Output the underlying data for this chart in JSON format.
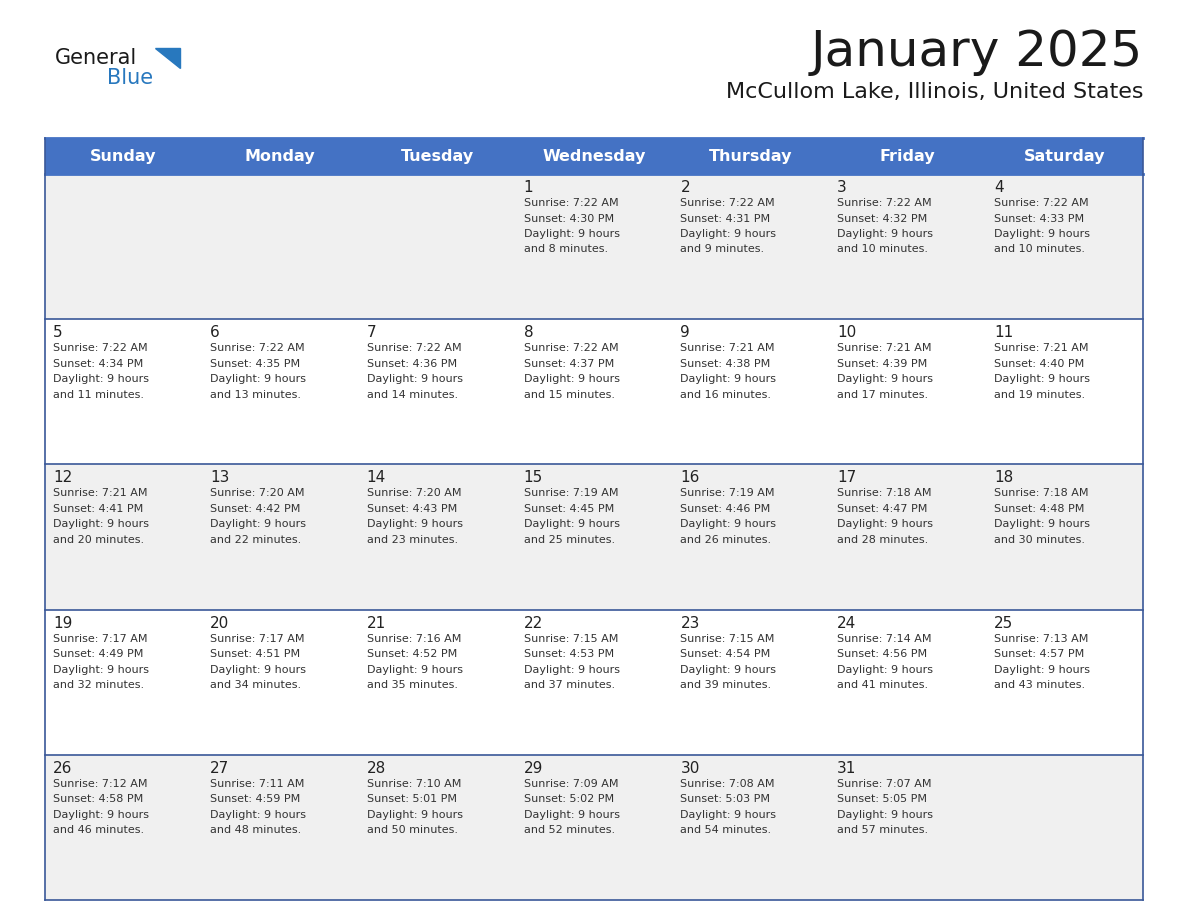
{
  "title": "January 2025",
  "subtitle": "McCullom Lake, Illinois, United States",
  "header_bg": "#4472C4",
  "header_text_color": "#FFFFFF",
  "cell_bg_light": "#F0F0F0",
  "cell_bg_white": "#FFFFFF",
  "header_border_color": "#4472C4",
  "row_border_color": "#3A5898",
  "text_color": "#333333",
  "day_num_color": "#222222",
  "day_names": [
    "Sunday",
    "Monday",
    "Tuesday",
    "Wednesday",
    "Thursday",
    "Friday",
    "Saturday"
  ],
  "days": [
    {
      "day": 1,
      "col": 3,
      "row": 0,
      "sunrise": "7:22 AM",
      "sunset": "4:30 PM",
      "daylight_h": "9 hours",
      "daylight_m": "and 8 minutes."
    },
    {
      "day": 2,
      "col": 4,
      "row": 0,
      "sunrise": "7:22 AM",
      "sunset": "4:31 PM",
      "daylight_h": "9 hours",
      "daylight_m": "and 9 minutes."
    },
    {
      "day": 3,
      "col": 5,
      "row": 0,
      "sunrise": "7:22 AM",
      "sunset": "4:32 PM",
      "daylight_h": "9 hours",
      "daylight_m": "and 10 minutes."
    },
    {
      "day": 4,
      "col": 6,
      "row": 0,
      "sunrise": "7:22 AM",
      "sunset": "4:33 PM",
      "daylight_h": "9 hours",
      "daylight_m": "and 10 minutes."
    },
    {
      "day": 5,
      "col": 0,
      "row": 1,
      "sunrise": "7:22 AM",
      "sunset": "4:34 PM",
      "daylight_h": "9 hours",
      "daylight_m": "and 11 minutes."
    },
    {
      "day": 6,
      "col": 1,
      "row": 1,
      "sunrise": "7:22 AM",
      "sunset": "4:35 PM",
      "daylight_h": "9 hours",
      "daylight_m": "and 13 minutes."
    },
    {
      "day": 7,
      "col": 2,
      "row": 1,
      "sunrise": "7:22 AM",
      "sunset": "4:36 PM",
      "daylight_h": "9 hours",
      "daylight_m": "and 14 minutes."
    },
    {
      "day": 8,
      "col": 3,
      "row": 1,
      "sunrise": "7:22 AM",
      "sunset": "4:37 PM",
      "daylight_h": "9 hours",
      "daylight_m": "and 15 minutes."
    },
    {
      "day": 9,
      "col": 4,
      "row": 1,
      "sunrise": "7:21 AM",
      "sunset": "4:38 PM",
      "daylight_h": "9 hours",
      "daylight_m": "and 16 minutes."
    },
    {
      "day": 10,
      "col": 5,
      "row": 1,
      "sunrise": "7:21 AM",
      "sunset": "4:39 PM",
      "daylight_h": "9 hours",
      "daylight_m": "and 17 minutes."
    },
    {
      "day": 11,
      "col": 6,
      "row": 1,
      "sunrise": "7:21 AM",
      "sunset": "4:40 PM",
      "daylight_h": "9 hours",
      "daylight_m": "and 19 minutes."
    },
    {
      "day": 12,
      "col": 0,
      "row": 2,
      "sunrise": "7:21 AM",
      "sunset": "4:41 PM",
      "daylight_h": "9 hours",
      "daylight_m": "and 20 minutes."
    },
    {
      "day": 13,
      "col": 1,
      "row": 2,
      "sunrise": "7:20 AM",
      "sunset": "4:42 PM",
      "daylight_h": "9 hours",
      "daylight_m": "and 22 minutes."
    },
    {
      "day": 14,
      "col": 2,
      "row": 2,
      "sunrise": "7:20 AM",
      "sunset": "4:43 PM",
      "daylight_h": "9 hours",
      "daylight_m": "and 23 minutes."
    },
    {
      "day": 15,
      "col": 3,
      "row": 2,
      "sunrise": "7:19 AM",
      "sunset": "4:45 PM",
      "daylight_h": "9 hours",
      "daylight_m": "and 25 minutes."
    },
    {
      "day": 16,
      "col": 4,
      "row": 2,
      "sunrise": "7:19 AM",
      "sunset": "4:46 PM",
      "daylight_h": "9 hours",
      "daylight_m": "and 26 minutes."
    },
    {
      "day": 17,
      "col": 5,
      "row": 2,
      "sunrise": "7:18 AM",
      "sunset": "4:47 PM",
      "daylight_h": "9 hours",
      "daylight_m": "and 28 minutes."
    },
    {
      "day": 18,
      "col": 6,
      "row": 2,
      "sunrise": "7:18 AM",
      "sunset": "4:48 PM",
      "daylight_h": "9 hours",
      "daylight_m": "and 30 minutes."
    },
    {
      "day": 19,
      "col": 0,
      "row": 3,
      "sunrise": "7:17 AM",
      "sunset": "4:49 PM",
      "daylight_h": "9 hours",
      "daylight_m": "and 32 minutes."
    },
    {
      "day": 20,
      "col": 1,
      "row": 3,
      "sunrise": "7:17 AM",
      "sunset": "4:51 PM",
      "daylight_h": "9 hours",
      "daylight_m": "and 34 minutes."
    },
    {
      "day": 21,
      "col": 2,
      "row": 3,
      "sunrise": "7:16 AM",
      "sunset": "4:52 PM",
      "daylight_h": "9 hours",
      "daylight_m": "and 35 minutes."
    },
    {
      "day": 22,
      "col": 3,
      "row": 3,
      "sunrise": "7:15 AM",
      "sunset": "4:53 PM",
      "daylight_h": "9 hours",
      "daylight_m": "and 37 minutes."
    },
    {
      "day": 23,
      "col": 4,
      "row": 3,
      "sunrise": "7:15 AM",
      "sunset": "4:54 PM",
      "daylight_h": "9 hours",
      "daylight_m": "and 39 minutes."
    },
    {
      "day": 24,
      "col": 5,
      "row": 3,
      "sunrise": "7:14 AM",
      "sunset": "4:56 PM",
      "daylight_h": "9 hours",
      "daylight_m": "and 41 minutes."
    },
    {
      "day": 25,
      "col": 6,
      "row": 3,
      "sunrise": "7:13 AM",
      "sunset": "4:57 PM",
      "daylight_h": "9 hours",
      "daylight_m": "and 43 minutes."
    },
    {
      "day": 26,
      "col": 0,
      "row": 4,
      "sunrise": "7:12 AM",
      "sunset": "4:58 PM",
      "daylight_h": "9 hours",
      "daylight_m": "and 46 minutes."
    },
    {
      "day": 27,
      "col": 1,
      "row": 4,
      "sunrise": "7:11 AM",
      "sunset": "4:59 PM",
      "daylight_h": "9 hours",
      "daylight_m": "and 48 minutes."
    },
    {
      "day": 28,
      "col": 2,
      "row": 4,
      "sunrise": "7:10 AM",
      "sunset": "5:01 PM",
      "daylight_h": "9 hours",
      "daylight_m": "and 50 minutes."
    },
    {
      "day": 29,
      "col": 3,
      "row": 4,
      "sunrise": "7:09 AM",
      "sunset": "5:02 PM",
      "daylight_h": "9 hours",
      "daylight_m": "and 52 minutes."
    },
    {
      "day": 30,
      "col": 4,
      "row": 4,
      "sunrise": "7:08 AM",
      "sunset": "5:03 PM",
      "daylight_h": "9 hours",
      "daylight_m": "and 54 minutes."
    },
    {
      "day": 31,
      "col": 5,
      "row": 4,
      "sunrise": "7:07 AM",
      "sunset": "5:05 PM",
      "daylight_h": "9 hours",
      "daylight_m": "and 57 minutes."
    }
  ]
}
